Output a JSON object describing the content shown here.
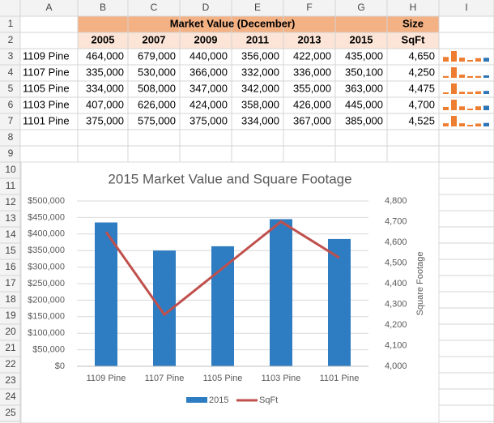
{
  "sheet": {
    "columns": [
      "A",
      "B",
      "C",
      "D",
      "E",
      "F",
      "G",
      "H",
      "I"
    ],
    "rows": [
      1,
      2,
      3,
      4,
      5,
      6,
      7,
      8,
      9,
      10,
      11,
      12,
      13,
      14,
      15,
      16,
      17,
      18,
      19,
      20,
      21,
      22,
      23,
      24,
      25
    ],
    "header": {
      "title": "Market Value (December)",
      "size": "Size",
      "years": [
        "2005",
        "2007",
        "2009",
        "2011",
        "2013",
        "2015"
      ],
      "unit": "SqFt"
    },
    "data": [
      {
        "label": "1109 Pine",
        "values": [
          464000,
          679000,
          440000,
          356000,
          422000,
          435000
        ],
        "value_labels": [
          "464,000",
          "679,000",
          "440,000",
          "356,000",
          "422,000",
          "435,000"
        ],
        "sqft": 4650,
        "sqft_label": "4,650"
      },
      {
        "label": "1107 Pine",
        "values": [
          335000,
          530000,
          366000,
          332000,
          336000,
          350100
        ],
        "value_labels": [
          "335,000",
          "530,000",
          "366,000",
          "332,000",
          "336,000",
          "350,100"
        ],
        "sqft": 4250,
        "sqft_label": "4,250"
      },
      {
        "label": "1105 Pine",
        "values": [
          334000,
          508000,
          347000,
          342000,
          355000,
          363000
        ],
        "value_labels": [
          "334,000",
          "508,000",
          "347,000",
          "342,000",
          "355,000",
          "363,000"
        ],
        "sqft": 4475,
        "sqft_label": "4,475"
      },
      {
        "label": "1103 Pine",
        "values": [
          407000,
          626000,
          424000,
          358000,
          426000,
          445000
        ],
        "value_labels": [
          "407,000",
          "626,000",
          "424,000",
          "358,000",
          "426,000",
          "445,000"
        ],
        "sqft": 4700,
        "sqft_label": "4,700"
      },
      {
        "label": "1101 Pine",
        "values": [
          375000,
          575000,
          375000,
          334000,
          367000,
          385000
        ],
        "value_labels": [
          "375,000",
          "575,000",
          "375,000",
          "334,000",
          "367,000",
          "385,000"
        ],
        "sqft": 4525,
        "sqft_label": "4,525"
      }
    ],
    "sparkline": {
      "color": "#ed7d31",
      "last_color": "#2e75b6"
    }
  },
  "chart_data": {
    "type": "combo",
    "title": "2015 Market Value and Square Footage",
    "y2_label": "Square Footage",
    "categories": [
      "1109 Pine",
      "1107 Pine",
      "1105 Pine",
      "1103 Pine",
      "1101 Pine"
    ],
    "series": [
      {
        "name": "2015",
        "type": "bar",
        "color": "#2e7cc1",
        "values": [
          435000,
          350100,
          363000,
          445000,
          385000
        ]
      },
      {
        "name": "SqFt",
        "type": "line",
        "axis": "y2",
        "color": "#c0504d",
        "values": [
          4650,
          4250,
          4475,
          4700,
          4525
        ]
      }
    ],
    "ylim": [
      0,
      500000
    ],
    "yticks": [
      {
        "value": 0,
        "label": "$0"
      },
      {
        "value": 50000,
        "label": "$50,000"
      },
      {
        "value": 100000,
        "label": "$100,000"
      },
      {
        "value": 150000,
        "label": "$150,000"
      },
      {
        "value": 200000,
        "label": "$200,000"
      },
      {
        "value": 250000,
        "label": "$250,000"
      },
      {
        "value": 300000,
        "label": "$300,000"
      },
      {
        "value": 350000,
        "label": "$350,000"
      },
      {
        "value": 400000,
        "label": "$400,000"
      },
      {
        "value": 450000,
        "label": "$450,000"
      },
      {
        "value": 500000,
        "label": "$500,000"
      }
    ],
    "y2lim": [
      4000,
      4800
    ],
    "y2ticks": [
      {
        "value": 4000,
        "label": "4,000"
      },
      {
        "value": 4100,
        "label": "4,100"
      },
      {
        "value": 4200,
        "label": "4,200"
      },
      {
        "value": 4300,
        "label": "4,300"
      },
      {
        "value": 4400,
        "label": "4,400"
      },
      {
        "value": 4500,
        "label": "4,500"
      },
      {
        "value": 4600,
        "label": "4,600"
      },
      {
        "value": 4700,
        "label": "4,700"
      },
      {
        "value": 4800,
        "label": "4,800"
      }
    ],
    "grid": true,
    "legend": "bottom"
  }
}
